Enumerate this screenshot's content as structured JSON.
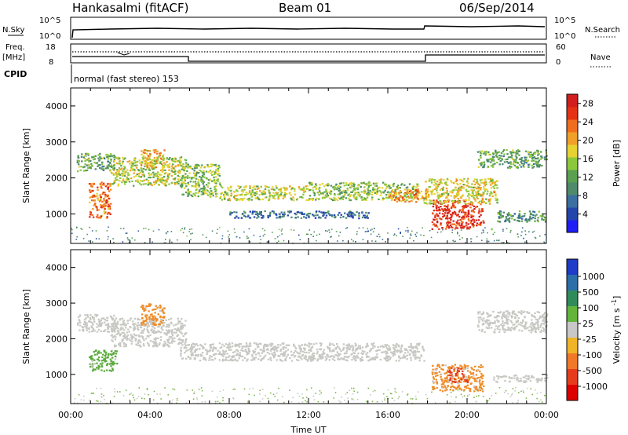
{
  "header": {
    "station": "Hankasalmi (fitACF)",
    "beam": "Beam 01",
    "date": "06/Sep/2014"
  },
  "top_panels": {
    "nsky_label": "N.Sky",
    "nsearch_label": "N.Search",
    "nsky_ticks": [
      "10^5",
      "10^0"
    ],
    "nsearch_ticks": [
      "10^5",
      "10^0"
    ],
    "freq_label": "Freq.",
    "freq_unit": "[MHz]",
    "freq_ticks": [
      "18",
      "8"
    ],
    "nave_label": "Nave",
    "nave_ticks": [
      "60",
      "0"
    ],
    "cpid_label": "CPID",
    "cpid_text": "normal (fast stereo) 153"
  },
  "chart_data": [
    {
      "type": "heatmap",
      "name": "power",
      "ylabel": "Slant Range [km]",
      "xlabel": "",
      "y_ticks": [
        "4000",
        "3000",
        "2000",
        "1000"
      ],
      "y_tick_values": [
        4000,
        3000,
        2000,
        1000
      ],
      "ylim": [
        180,
        4500
      ],
      "xlim_hours": [
        0,
        24
      ],
      "colorbar": {
        "label": "Power [dB]",
        "ticks": [
          "28",
          "24",
          "20",
          "16",
          "12",
          "8",
          "4"
        ],
        "tick_values": [
          28,
          24,
          20,
          16,
          12,
          8,
          4
        ],
        "range": [
          0,
          30
        ],
        "colors": [
          "#1e1ef5",
          "#2446aa",
          "#3a6fa0",
          "#4f8a6a",
          "#5aa050",
          "#8cc83c",
          "#e6d232",
          "#f0a028",
          "#f06e1e",
          "#e63214",
          "#d21e1e"
        ]
      },
      "bands": [
        {
          "t0": 0.9,
          "t1": 2.0,
          "r0": 900,
          "r1": 1900,
          "level": 24
        },
        {
          "t0": 0.3,
          "t1": 2.2,
          "r0": 2200,
          "r1": 2700,
          "level": 12
        },
        {
          "t0": 2.0,
          "t1": 5.8,
          "r0": 1800,
          "r1": 2600,
          "level": 16
        },
        {
          "t0": 3.5,
          "t1": 4.7,
          "r0": 2300,
          "r1": 2800,
          "level": 20
        },
        {
          "t0": 5.5,
          "t1": 7.5,
          "r0": 1500,
          "r1": 2400,
          "level": 14
        },
        {
          "t0": 7.5,
          "t1": 12.0,
          "r0": 1400,
          "r1": 1800,
          "level": 16
        },
        {
          "t0": 12.0,
          "t1": 17.5,
          "r0": 1400,
          "r1": 1900,
          "level": 14
        },
        {
          "t0": 16.0,
          "t1": 18.0,
          "r0": 1350,
          "r1": 1700,
          "level": 22
        },
        {
          "t0": 18.2,
          "t1": 20.8,
          "r0": 600,
          "r1": 1400,
          "level": 28
        },
        {
          "t0": 17.8,
          "t1": 21.5,
          "r0": 1300,
          "r1": 2000,
          "level": 18
        },
        {
          "t0": 20.5,
          "t1": 24.0,
          "r0": 2300,
          "r1": 2800,
          "level": 12
        },
        {
          "t0": 21.5,
          "t1": 24.0,
          "r0": 800,
          "r1": 1100,
          "level": 10
        },
        {
          "t0": 8.0,
          "t1": 15.0,
          "r0": 900,
          "r1": 1100,
          "level": 6
        }
      ]
    },
    {
      "type": "heatmap",
      "name": "velocity",
      "ylabel": "Slant Range [km]",
      "xlabel": "Time UT",
      "y_ticks": [
        "4000",
        "3000",
        "2000",
        "1000"
      ],
      "y_tick_values": [
        4000,
        3000,
        2000,
        1000
      ],
      "ylim": [
        180,
        4500
      ],
      "x_ticks": [
        "00:00",
        "04:00",
        "08:00",
        "12:00",
        "16:00",
        "20:00",
        "00:00"
      ],
      "x_tick_values": [
        0,
        4,
        8,
        12,
        16,
        20,
        24
      ],
      "xlim_hours": [
        0,
        24
      ],
      "colorbar": {
        "label": "Velocity [m s^-1]",
        "ticks": [
          "1000",
          "500",
          "100",
          "25",
          "-25",
          "-100",
          "-500",
          "-1000"
        ],
        "colors": [
          "#1e3cc8",
          "#2b6ea8",
          "#2f8c5a",
          "#64b43c",
          "#c8c8c8",
          "#f0b428",
          "#f07828",
          "#e63c1e",
          "#dc0000"
        ]
      },
      "bands": [
        {
          "t0": 0.3,
          "t1": 2.2,
          "r0": 2200,
          "r1": 2700,
          "level": "gray"
        },
        {
          "t0": 0.9,
          "t1": 2.3,
          "r0": 1100,
          "r1": 1700,
          "level": "green"
        },
        {
          "t0": 2.0,
          "t1": 5.8,
          "r0": 1800,
          "r1": 2600,
          "level": "gray"
        },
        {
          "t0": 3.5,
          "t1": 4.7,
          "r0": 2400,
          "r1": 3000,
          "level": "orange"
        },
        {
          "t0": 5.5,
          "t1": 17.8,
          "r0": 1400,
          "r1": 1900,
          "level": "gray"
        },
        {
          "t0": 18.2,
          "t1": 20.8,
          "r0": 550,
          "r1": 1300,
          "level": "orange"
        },
        {
          "t0": 19.0,
          "t1": 20.0,
          "r0": 800,
          "r1": 1200,
          "level": "red"
        },
        {
          "t0": 20.5,
          "t1": 24.0,
          "r0": 2200,
          "r1": 2800,
          "level": "gray"
        },
        {
          "t0": 21.3,
          "t1": 24.0,
          "r0": 800,
          "r1": 1000,
          "level": "gray"
        }
      ]
    }
  ]
}
